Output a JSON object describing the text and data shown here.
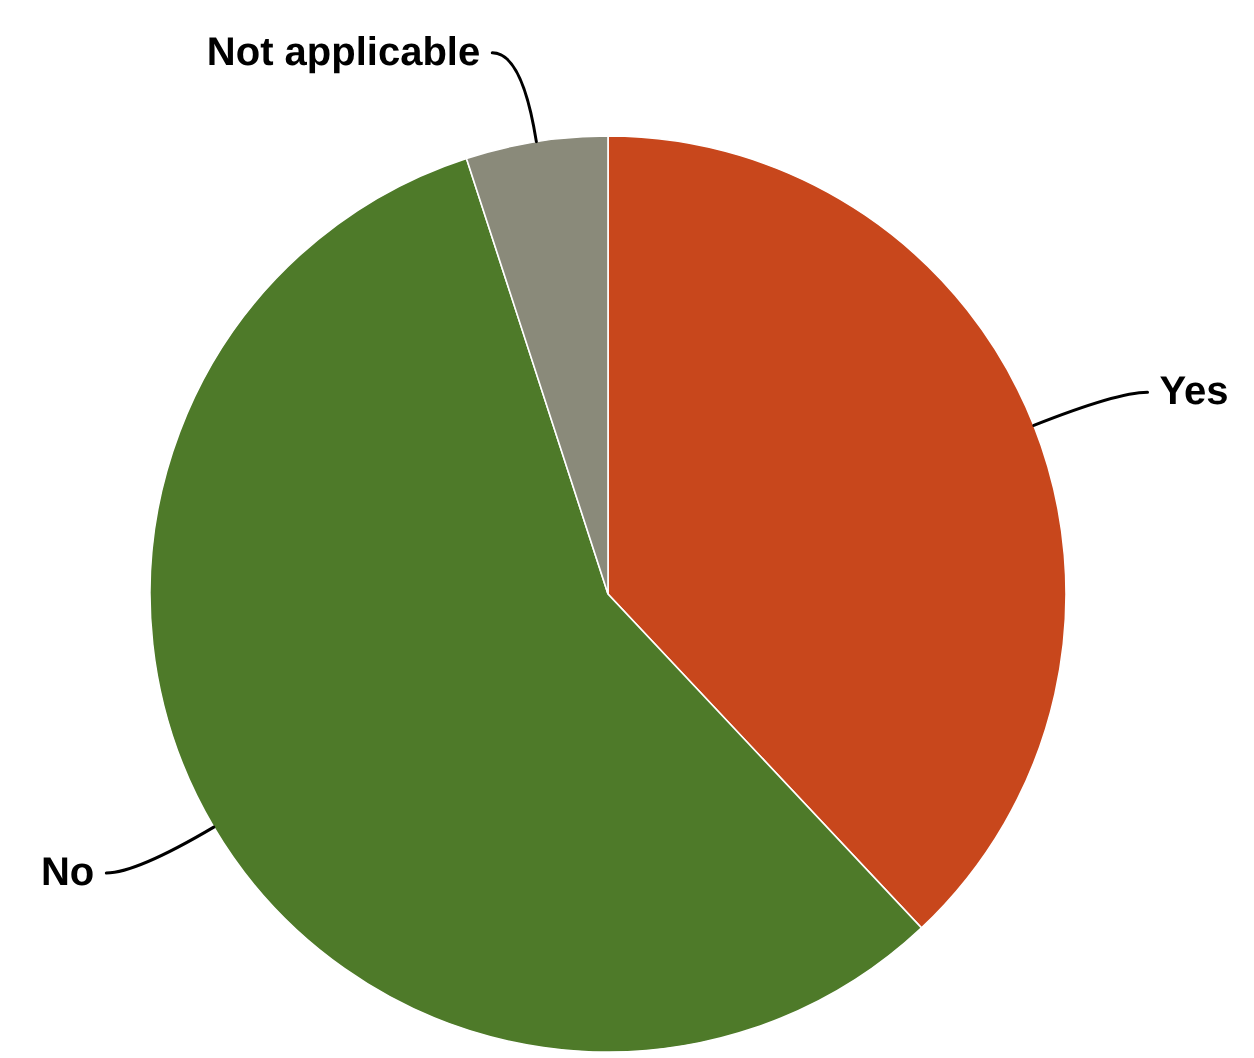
{
  "chart_data": {
    "type": "pie",
    "categories": [
      "Yes",
      "No",
      "Not applicable"
    ],
    "values": [
      38,
      57,
      5
    ],
    "colors": [
      "#c8471c",
      "#4e7a29",
      "#8a8a7a"
    ]
  }
}
